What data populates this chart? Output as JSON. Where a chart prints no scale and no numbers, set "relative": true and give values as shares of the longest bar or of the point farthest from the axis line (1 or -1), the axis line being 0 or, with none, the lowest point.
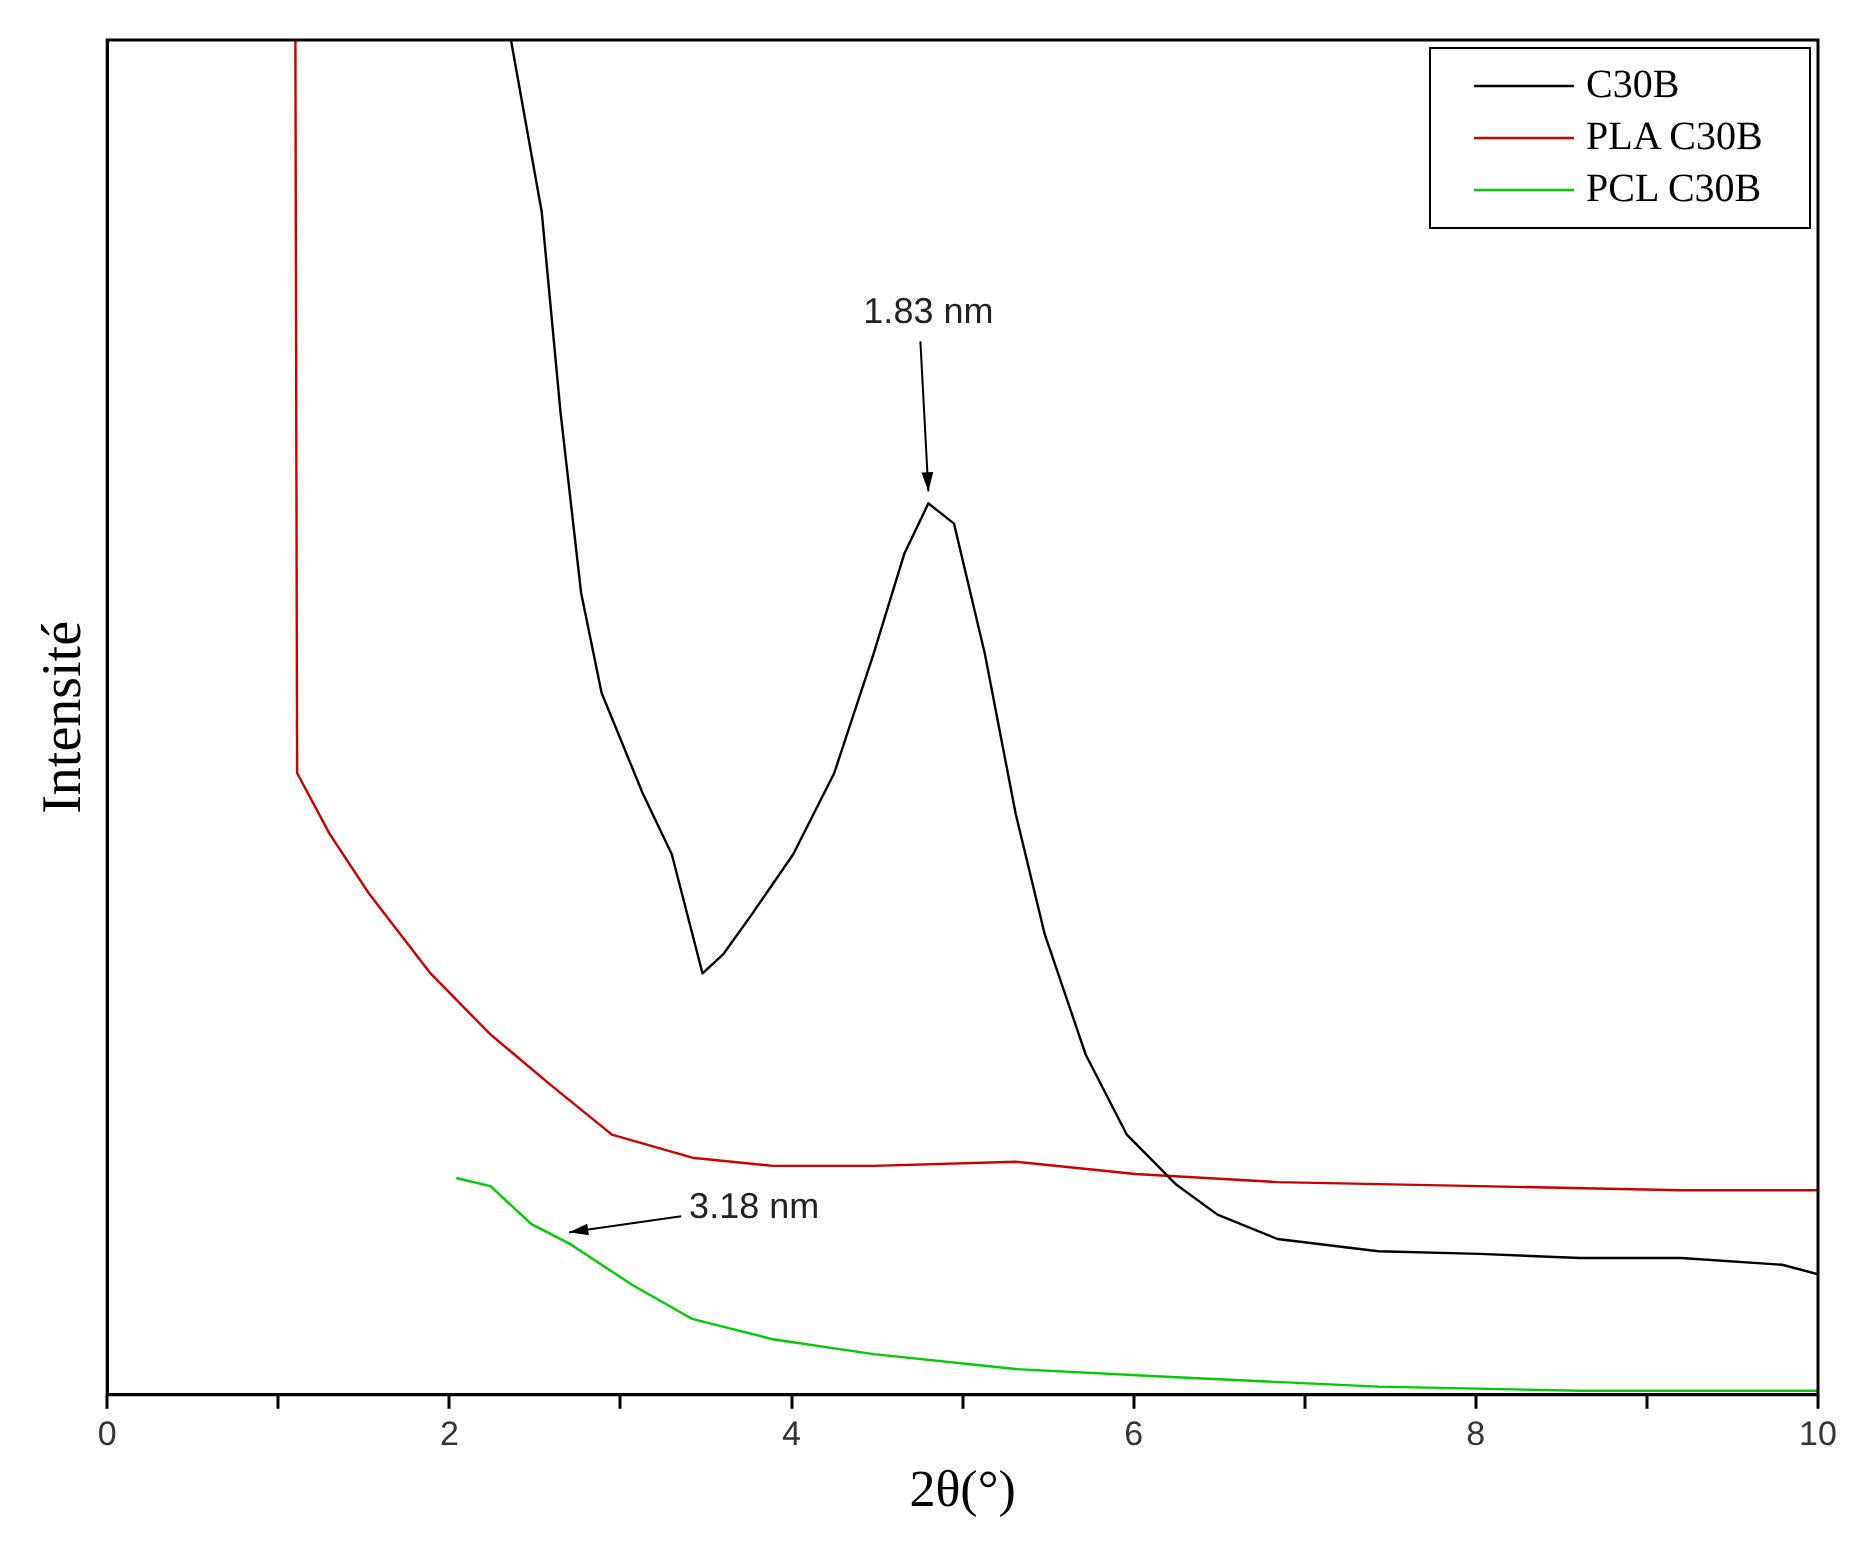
{
  "chart_data": {
    "type": "line",
    "xlabel": "2θ(°)",
    "ylabel": "Intensité",
    "relative": true,
    "xlim": [
      0,
      10
    ],
    "xticks": [
      0,
      {
        "value": 1,
        "label": null
      },
      2,
      {
        "value": 3,
        "label": null
      },
      4,
      {
        "value": 5,
        "label": null
      },
      6,
      {
        "value": 7,
        "label": null
      },
      8,
      {
        "value": 9,
        "label": null
      },
      10
    ],
    "grid": false,
    "legend": "top right",
    "marker": "none",
    "line_style": "solid",
    "annotations": [
      {
        "text": "1.83 nm",
        "x": 4.8,
        "y": 0.658
      },
      {
        "text": "3.18 nm",
        "x": 2.7,
        "y": 0.12
      }
    ],
    "series": [
      {
        "name": "C30B",
        "color": "#000000",
        "x": [
          2.36,
          2.54,
          2.65,
          2.77,
          2.89,
          3.13,
          3.3,
          3.48,
          3.6,
          3.77,
          4.01,
          4.25,
          4.48,
          4.66,
          4.8,
          4.95,
          5.13,
          5.31,
          5.48,
          5.72,
          5.96,
          6.25,
          6.49,
          6.84,
          7.43,
          8.02,
          8.61,
          9.2,
          9.79,
          10
        ],
        "values": [
          1.0,
          0.873,
          0.725,
          0.592,
          0.518,
          0.444,
          0.399,
          0.311,
          0.325,
          0.355,
          0.399,
          0.459,
          0.547,
          0.621,
          0.658,
          0.643,
          0.547,
          0.429,
          0.34,
          0.251,
          0.192,
          0.155,
          0.133,
          0.115,
          0.106,
          0.104,
          0.101,
          0.101,
          0.096,
          0.089
        ]
      },
      {
        "name": "PLA C30B",
        "color": "#cc0000",
        "x": [
          1.1,
          1.11,
          1.3,
          1.53,
          1.89,
          2.24,
          2.59,
          2.95,
          3.42,
          3.89,
          4.48,
          5.31,
          6.01,
          6.84,
          8.02,
          9.2,
          10
        ],
        "values": [
          1.0,
          0.459,
          0.414,
          0.37,
          0.311,
          0.266,
          0.229,
          0.192,
          0.175,
          0.169,
          0.169,
          0.172,
          0.163,
          0.157,
          0.154,
          0.151,
          0.151
        ]
      },
      {
        "name": "PCL C30B",
        "color": "#00cc00",
        "x": [
          2.04,
          2.24,
          2.48,
          2.71,
          3.07,
          3.42,
          3.89,
          4.48,
          5.31,
          6.25,
          7.43,
          8.61,
          10
        ],
        "values": [
          0.16,
          0.154,
          0.126,
          0.111,
          0.081,
          0.056,
          0.041,
          0.03,
          0.019,
          0.013,
          0.006,
          0.003,
          0.003
        ]
      }
    ]
  }
}
